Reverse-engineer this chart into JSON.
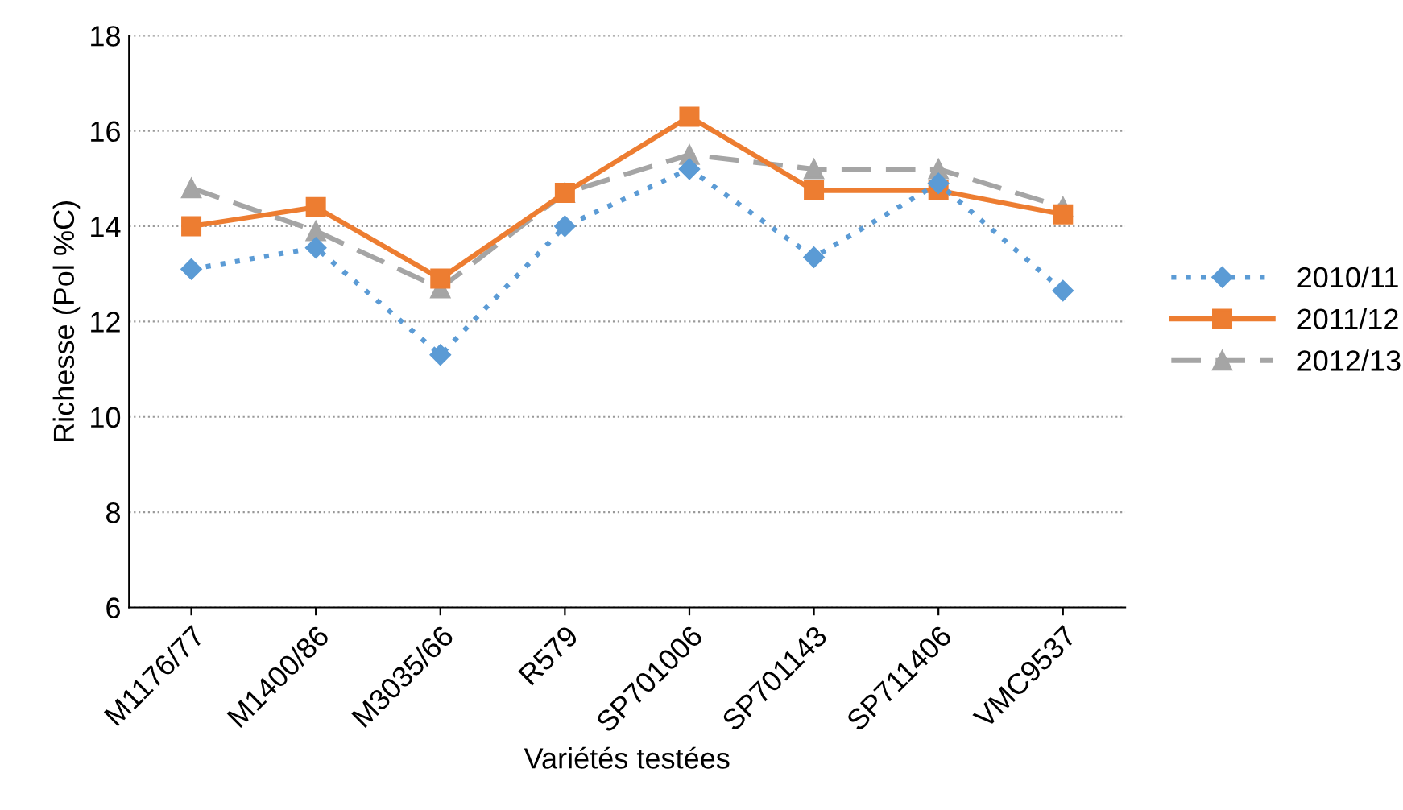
{
  "chart_data": {
    "type": "line",
    "xlabel": "Variétés testées",
    "ylabel": "Richesse (Pol %C)",
    "categories": [
      "M1176/77",
      "M1400/86",
      "M3035/66",
      "R579",
      "SP701006",
      "SP701143",
      "SP711406",
      "VMC9537"
    ],
    "series": [
      {
        "name": "2010/11",
        "color": "#5b9bd5",
        "marker": "diamond",
        "line_style": "dotted",
        "values": [
          13.1,
          13.55,
          11.3,
          14.0,
          15.2,
          13.35,
          14.9,
          12.65
        ]
      },
      {
        "name": "2011/12",
        "color": "#ed7d31",
        "marker": "square",
        "line_style": "solid",
        "values": [
          14.0,
          14.4,
          12.9,
          14.7,
          16.3,
          14.75,
          14.75,
          14.25
        ]
      },
      {
        "name": "2012/13",
        "color": "#a5a5a5",
        "marker": "triangle",
        "line_style": "dashed",
        "values": [
          14.8,
          13.9,
          12.7,
          14.7,
          15.5,
          15.2,
          15.2,
          14.4
        ]
      }
    ],
    "ylim": [
      6,
      18
    ],
    "yticks": [
      6,
      8,
      10,
      12,
      14,
      16,
      18
    ],
    "grid": "y",
    "legend": "right"
  }
}
